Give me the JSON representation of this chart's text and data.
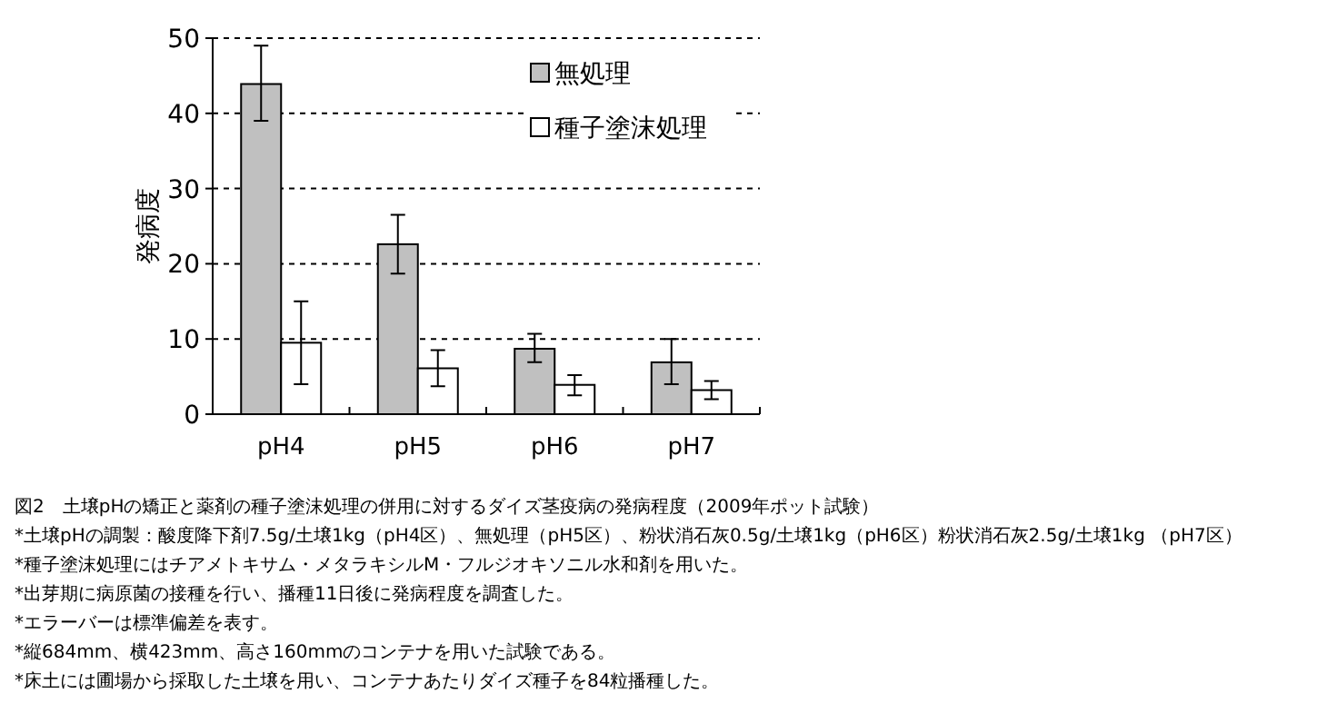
{
  "chart_data": {
    "type": "bar",
    "title": "図2　土壌pHの矯正と薬剤の種子塗沫処理の併用に対するダイズ茎疫病の発病程度（2009年ポット試験）",
    "ylabel": "発病度",
    "categories": [
      "pH4",
      "pH5",
      "pH6",
      "pH7"
    ],
    "series": [
      {
        "name": "無処理",
        "color": "#c0c0c0",
        "values": [
          43.9,
          22.6,
          8.7,
          6.9
        ],
        "errors": [
          [
            39,
            49
          ],
          [
            18.7,
            26.5
          ],
          [
            6.9,
            10.7
          ],
          [
            4,
            10
          ]
        ]
      },
      {
        "name": "種子塗沫処理",
        "color": "#ffffff",
        "values": [
          9.5,
          6.1,
          3.9,
          3.2
        ],
        "errors": [
          [
            4,
            15
          ],
          [
            3.7,
            8.5
          ],
          [
            2.5,
            5.2
          ],
          [
            2,
            4.4
          ]
        ]
      }
    ],
    "ylim": [
      0,
      50
    ],
    "yticks": [
      0,
      10,
      20,
      30,
      40,
      50
    ],
    "grid": "y",
    "legend": "top right",
    "annotations": [
      "*土壌pHの調製：酸度降下剤7.5g/土壌1kg（pH4区）、無処理（pH5区）、粉状消石灰0.5g/土壌1kg（pH6区）粉状消石灰2.5g/土壌1kg （pH7区）",
      "*種子塗沫処理にはチアメトキサム・メタラキシルM・フルジオキソニル水和剤を用いた。",
      "*出芽期に病原菌の接種を行い、播種11日後に発病程度を調査した。",
      "*エラーバーは標準偏差を表す。",
      "*縦684mm、横423mm、高さ160mmのコンテナを用いた試験である。",
      "*床土には圃場から採取した土壌を用い、コンテナあたりダイズ種子を84粒播種した。"
    ]
  }
}
